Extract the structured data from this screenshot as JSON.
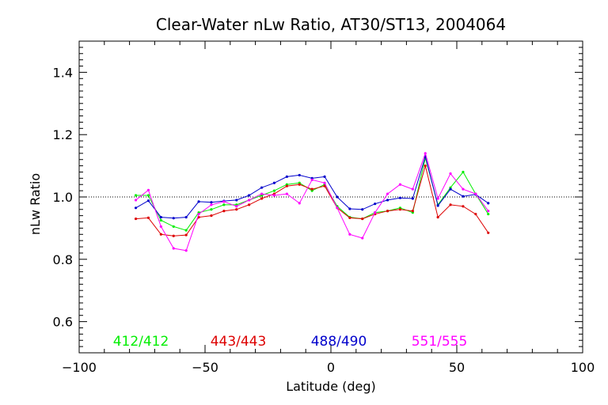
{
  "chart_data": {
    "type": "line",
    "title": "Clear-Water nLw Ratio, AT30/ST13, 2004064",
    "xlabel": "Latitude (deg)",
    "ylabel": "nLw Ratio",
    "xlim": [
      -100,
      100
    ],
    "ylim": [
      0.5,
      1.5
    ],
    "x_ticks": [
      -100,
      -50,
      0,
      50,
      100
    ],
    "y_ticks": [
      0.6,
      0.8,
      1.0,
      1.2,
      1.4
    ],
    "x_tick_labels": [
      "−100",
      "−50",
      "0",
      "50",
      "100"
    ],
    "y_tick_labels": [
      "0.6",
      "0.8",
      "1.0",
      "1.2",
      "1.4"
    ],
    "reference_line": {
      "y": 1.0,
      "style": "dotted"
    },
    "grid": false,
    "legend_position": "bottom",
    "x": [
      -77.5,
      -72.5,
      -67.5,
      -62.5,
      -57.5,
      -52.5,
      -47.5,
      -42.5,
      -37.5,
      -32.5,
      -27.5,
      -22.5,
      -17.5,
      -12.5,
      -7.5,
      -2.5,
      2.5,
      7.5,
      12.5,
      17.5,
      22.5,
      27.5,
      32.5,
      37.5,
      42.5,
      47.5,
      52.5,
      57.5,
      62.5
    ],
    "series": [
      {
        "name": "412/412",
        "color": "#00ee00",
        "values": [
          1.005,
          1.005,
          0.925,
          0.905,
          0.893,
          0.95,
          0.96,
          0.975,
          0.975,
          0.99,
          1.005,
          1.02,
          1.04,
          1.045,
          1.02,
          1.04,
          0.97,
          0.935,
          0.93,
          0.95,
          0.955,
          0.965,
          0.95,
          1.125,
          0.975,
          1.03,
          1.08,
          1.01,
          0.945
        ]
      },
      {
        "name": "443/443",
        "color": "#dd0000",
        "values": [
          0.93,
          0.933,
          0.88,
          0.875,
          0.878,
          0.935,
          0.94,
          0.955,
          0.96,
          0.975,
          0.995,
          1.01,
          1.035,
          1.04,
          1.025,
          1.035,
          0.965,
          0.933,
          0.93,
          0.945,
          0.955,
          0.96,
          0.955,
          1.1,
          0.935,
          0.975,
          0.97,
          0.945,
          0.885
        ]
      },
      {
        "name": "488/490",
        "color": "#0000cc",
        "values": [
          0.965,
          0.988,
          0.935,
          0.932,
          0.935,
          0.985,
          0.983,
          0.987,
          0.99,
          1.005,
          1.03,
          1.045,
          1.065,
          1.07,
          1.06,
          1.065,
          1.0,
          0.962,
          0.96,
          0.978,
          0.99,
          0.997,
          0.995,
          1.13,
          0.972,
          1.025,
          1.002,
          1.008,
          0.98
        ]
      },
      {
        "name": "551/555",
        "color": "#ff00ff",
        "values": [
          0.99,
          1.022,
          0.905,
          0.835,
          0.828,
          0.945,
          0.975,
          0.985,
          0.97,
          0.99,
          1.01,
          1.005,
          1.01,
          0.98,
          1.055,
          1.045,
          0.965,
          0.88,
          0.868,
          0.95,
          1.01,
          1.04,
          1.025,
          1.14,
          0.995,
          1.075,
          1.025,
          1.01,
          0.955
        ]
      }
    ]
  }
}
